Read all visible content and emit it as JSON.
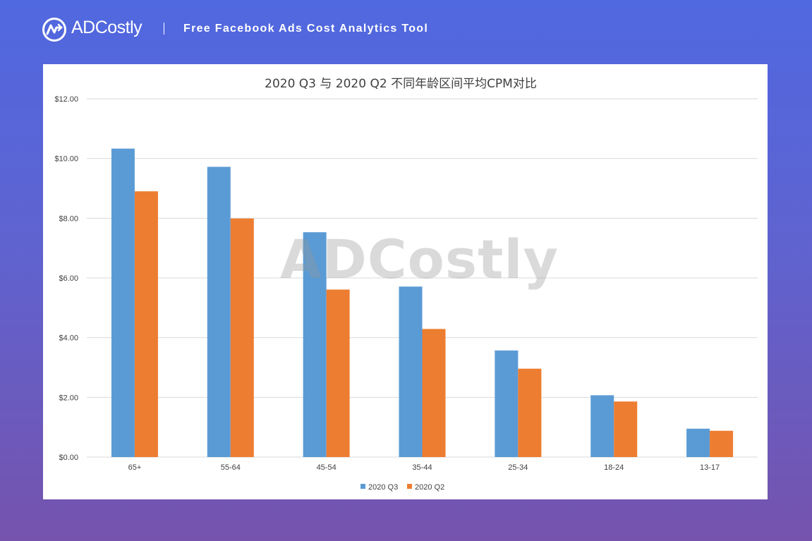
{
  "header": {
    "brand": "ADCostly",
    "tagline": "Free Facebook Ads Cost Analytics Tool"
  },
  "watermark": "ADCostly",
  "colors": {
    "q3": "#5b9bd5",
    "q2": "#ed7d31",
    "grid": "#d9d9d9"
  },
  "chart_data": {
    "type": "bar",
    "title": "2020 Q3 与 2020 Q2 不同年龄区间平均CPM对比",
    "xlabel": "",
    "ylabel": "",
    "categories": [
      "65+",
      "55-64",
      "45-54",
      "35-44",
      "25-34",
      "18-24",
      "13-17"
    ],
    "series": [
      {
        "name": "2020 Q3",
        "values": [
          10.33,
          9.72,
          7.53,
          5.71,
          3.57,
          2.07,
          0.95
        ]
      },
      {
        "name": "2020 Q2",
        "values": [
          8.9,
          7.99,
          5.61,
          4.29,
          2.96,
          1.86,
          0.88
        ]
      }
    ],
    "ylim": [
      0,
      12
    ],
    "yticks": [
      "$0.00",
      "$2.00",
      "$4.00",
      "$6.00",
      "$8.00",
      "$10.00",
      "$12.00"
    ],
    "grid": true,
    "legend": "bottom-center"
  }
}
